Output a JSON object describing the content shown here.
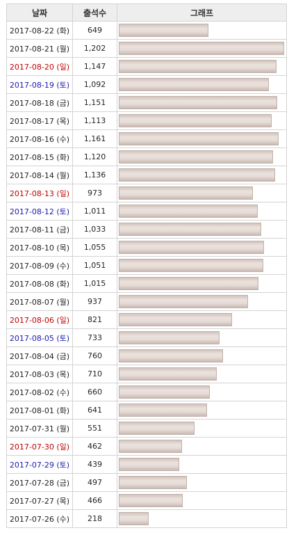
{
  "header": {
    "date": "날짜",
    "count": "출석수",
    "graph": "그래프"
  },
  "max_count": 1202,
  "rows": [
    {
      "date": "2017-08-22 (화)",
      "count": "649",
      "value": 649,
      "day": "weekday"
    },
    {
      "date": "2017-08-21 (월)",
      "count": "1,202",
      "value": 1202,
      "day": "weekday"
    },
    {
      "date": "2017-08-20 (일)",
      "count": "1,147",
      "value": 1147,
      "day": "sun"
    },
    {
      "date": "2017-08-19 (토)",
      "count": "1,092",
      "value": 1092,
      "day": "sat"
    },
    {
      "date": "2017-08-18 (금)",
      "count": "1,151",
      "value": 1151,
      "day": "weekday"
    },
    {
      "date": "2017-08-17 (목)",
      "count": "1,113",
      "value": 1113,
      "day": "weekday"
    },
    {
      "date": "2017-08-16 (수)",
      "count": "1,161",
      "value": 1161,
      "day": "weekday"
    },
    {
      "date": "2017-08-15 (화)",
      "count": "1,120",
      "value": 1120,
      "day": "weekday"
    },
    {
      "date": "2017-08-14 (월)",
      "count": "1,136",
      "value": 1136,
      "day": "weekday"
    },
    {
      "date": "2017-08-13 (일)",
      "count": "973",
      "value": 973,
      "day": "sun"
    },
    {
      "date": "2017-08-12 (토)",
      "count": "1,011",
      "value": 1011,
      "day": "sat"
    },
    {
      "date": "2017-08-11 (금)",
      "count": "1,033",
      "value": 1033,
      "day": "weekday"
    },
    {
      "date": "2017-08-10 (목)",
      "count": "1,055",
      "value": 1055,
      "day": "weekday"
    },
    {
      "date": "2017-08-09 (수)",
      "count": "1,051",
      "value": 1051,
      "day": "weekday"
    },
    {
      "date": "2017-08-08 (화)",
      "count": "1,015",
      "value": 1015,
      "day": "weekday"
    },
    {
      "date": "2017-08-07 (월)",
      "count": "937",
      "value": 937,
      "day": "weekday"
    },
    {
      "date": "2017-08-06 (일)",
      "count": "821",
      "value": 821,
      "day": "sun"
    },
    {
      "date": "2017-08-05 (토)",
      "count": "733",
      "value": 733,
      "day": "sat"
    },
    {
      "date": "2017-08-04 (금)",
      "count": "760",
      "value": 760,
      "day": "weekday"
    },
    {
      "date": "2017-08-03 (목)",
      "count": "710",
      "value": 710,
      "day": "weekday"
    },
    {
      "date": "2017-08-02 (수)",
      "count": "660",
      "value": 660,
      "day": "weekday"
    },
    {
      "date": "2017-08-01 (화)",
      "count": "641",
      "value": 641,
      "day": "weekday"
    },
    {
      "date": "2017-07-31 (월)",
      "count": "551",
      "value": 551,
      "day": "weekday"
    },
    {
      "date": "2017-07-30 (일)",
      "count": "462",
      "value": 462,
      "day": "sun"
    },
    {
      "date": "2017-07-29 (토)",
      "count": "439",
      "value": 439,
      "day": "sat"
    },
    {
      "date": "2017-07-28 (금)",
      "count": "497",
      "value": 497,
      "day": "weekday"
    },
    {
      "date": "2017-07-27 (목)",
      "count": "466",
      "value": 466,
      "day": "weekday"
    },
    {
      "date": "2017-07-26 (수)",
      "count": "218",
      "value": 218,
      "day": "weekday"
    }
  ],
  "colors": {
    "sunday": "#c00000",
    "saturday": "#1a1aaa",
    "bar": "#e6dbd7"
  }
}
